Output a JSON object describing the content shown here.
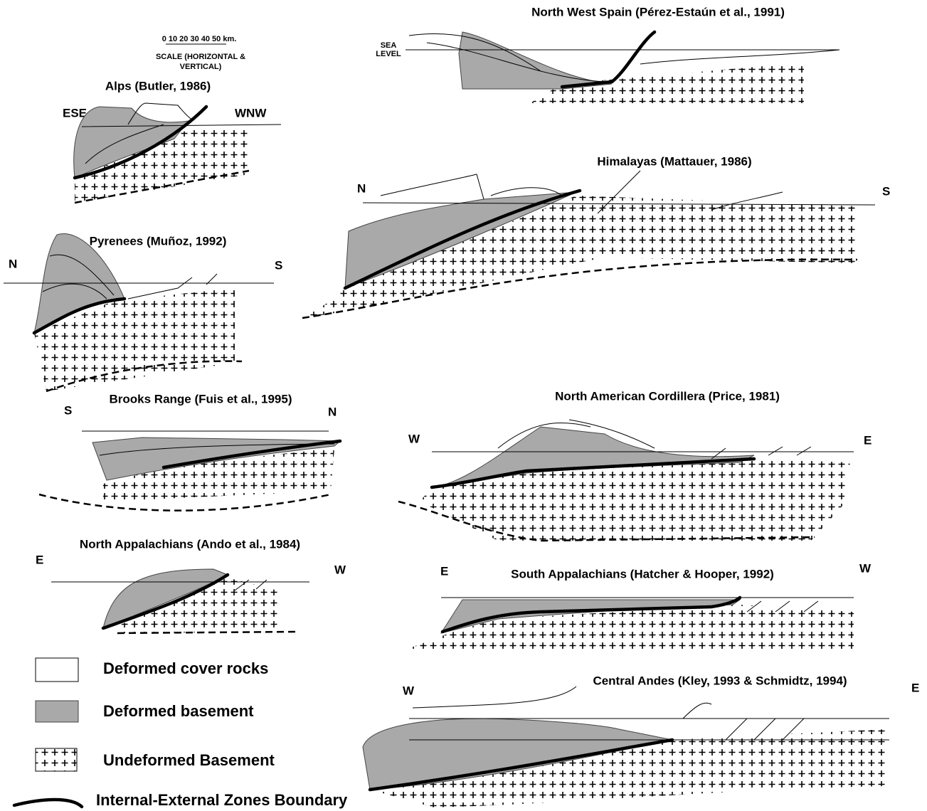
{
  "scale": {
    "label": "0 10 20 30 40 50 km.",
    "caption": [
      "SCALE (HORIZONTAL &",
      "VERTICAL)"
    ]
  },
  "sections": [
    {
      "title": "Alps (Butler, 1986)",
      "left": "ESE",
      "right": "WNW"
    },
    {
      "title": "Pyrenees (Muñoz, 1992)",
      "left": "N",
      "right": "S"
    },
    {
      "title": "Brooks Range (Fuis et al., 1995)",
      "left": "S",
      "right": "N"
    },
    {
      "title": "North Appalachians (Ando et al., 1984)",
      "left": "E",
      "right": "W"
    },
    {
      "title": "North West Spain (Pérez-Estaún et al., 1991)",
      "sea_level": [
        "SEA",
        "LEVEL"
      ]
    },
    {
      "title": "Himalayas (Mattauer, 1986)",
      "left": "N",
      "right": "S"
    },
    {
      "title": "North American Cordillera (Price, 1981)",
      "left": "W",
      "right": "E"
    },
    {
      "title": "South Appalachians (Hatcher & Hooper, 1992)",
      "left": "E",
      "right": "W"
    },
    {
      "title": "Central Andes (Kley, 1993 & Schmidtz, 1994)",
      "left": "W",
      "right": "E"
    }
  ],
  "legend": [
    "Deformed cover rocks",
    "Deformed basement",
    "Undeformed Basement",
    "Internal-External Zones Boundary"
  ]
}
